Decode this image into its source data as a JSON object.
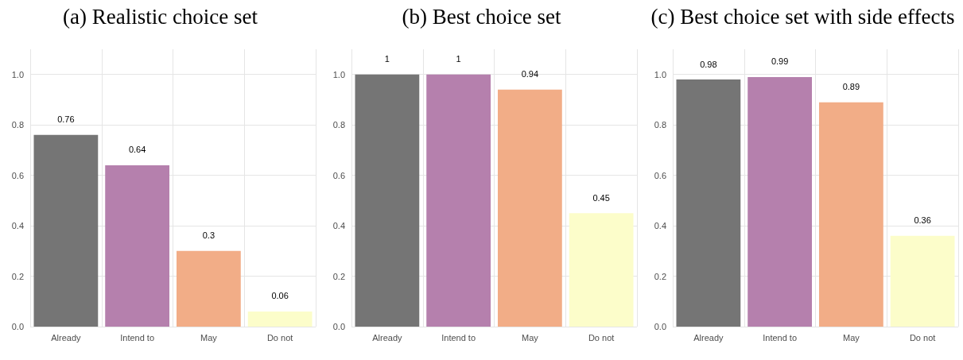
{
  "chart_data": [
    {
      "type": "bar",
      "title": "(a) Realistic choice set",
      "categories": [
        "Already",
        "Intend to",
        "May",
        "Do not"
      ],
      "values": [
        0.76,
        0.64,
        0.3,
        0.06
      ],
      "colors": [
        "#757575",
        "#b580ad",
        "#f2ad87",
        "#fcfdca"
      ],
      "ylim": [
        0,
        1.1
      ],
      "yticks": [
        {
          "value": 0,
          "label": "0.0"
        },
        {
          "value": 0.2,
          "label": "0.2"
        },
        {
          "value": 0.4,
          "label": "0.4"
        },
        {
          "value": 0.6,
          "label": "0.6"
        },
        {
          "value": 0.8,
          "label": "0.8"
        },
        {
          "value": 1,
          "label": "1.0"
        }
      ],
      "grid": true,
      "data_labels": true
    },
    {
      "type": "bar",
      "title": "(b) Best choice set",
      "categories": [
        "Already",
        "Intend to",
        "May",
        "Do not"
      ],
      "values": [
        1,
        1,
        0.94,
        0.45
      ],
      "colors": [
        "#757575",
        "#b580ad",
        "#f2ad87",
        "#fcfdca"
      ],
      "ylim": [
        0,
        1.1
      ],
      "yticks": [
        {
          "value": 0,
          "label": "0.0"
        },
        {
          "value": 0.2,
          "label": "0.2"
        },
        {
          "value": 0.4,
          "label": "0.4"
        },
        {
          "value": 0.6,
          "label": "0.6"
        },
        {
          "value": 0.8,
          "label": "0.8"
        },
        {
          "value": 1,
          "label": "1.0"
        }
      ],
      "grid": true,
      "data_labels": true
    },
    {
      "type": "bar",
      "title": "(c) Best choice set with side effects",
      "categories": [
        "Already",
        "Intend to",
        "May",
        "Do not"
      ],
      "values": [
        0.98,
        0.99,
        0.89,
        0.36
      ],
      "colors": [
        "#757575",
        "#b580ad",
        "#f2ad87",
        "#fcfdca"
      ],
      "ylim": [
        0,
        1.1
      ],
      "yticks": [
        {
          "value": 0,
          "label": "0.0"
        },
        {
          "value": 0.2,
          "label": "0.2"
        },
        {
          "value": 0.4,
          "label": "0.4"
        },
        {
          "value": 0.6,
          "label": "0.6"
        },
        {
          "value": 0.8,
          "label": "0.8"
        },
        {
          "value": 1,
          "label": "1.0"
        }
      ],
      "grid": true,
      "data_labels": true
    }
  ]
}
